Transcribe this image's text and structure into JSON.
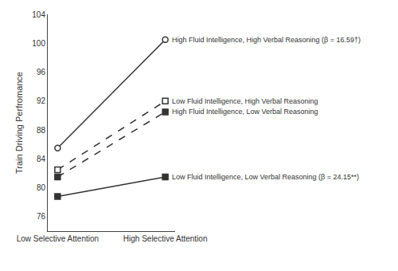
{
  "chart_data": {
    "type": "line",
    "categories": [
      "Low Selective Attention",
      "High Selective Attention"
    ],
    "series": [
      {
        "name": "High Fluid Intelligence, High Verbal Reasoning (β = 16.59†)",
        "color": "#333333",
        "values": [
          85.5,
          100.5
        ],
        "marker": "circle-open",
        "line_style": "solid"
      },
      {
        "name": "Low Fluid Intelligence, High Verbal Reasoning",
        "color": "#333333",
        "values": [
          82.5,
          92.0
        ],
        "marker": "square-open",
        "line_style": "dashed"
      },
      {
        "name": "High Fluid Intelligence, Low Verbal Reasoning",
        "color": "#333333",
        "values": [
          81.5,
          90.5
        ],
        "marker": "square",
        "line_style": "dashed"
      },
      {
        "name": "Low Fluid Intelligence, Low Verbal Reasoning (β = 24.15**)",
        "color": "#333333",
        "values": [
          78.8,
          81.5
        ],
        "marker": "square",
        "line_style": "solid"
      }
    ],
    "ylabel": "Train Driving Perfromance",
    "ylim": [
      74,
      104
    ],
    "yticks": [
      76,
      80,
      84,
      88,
      92,
      96,
      100,
      104
    ],
    "grid": false
  }
}
